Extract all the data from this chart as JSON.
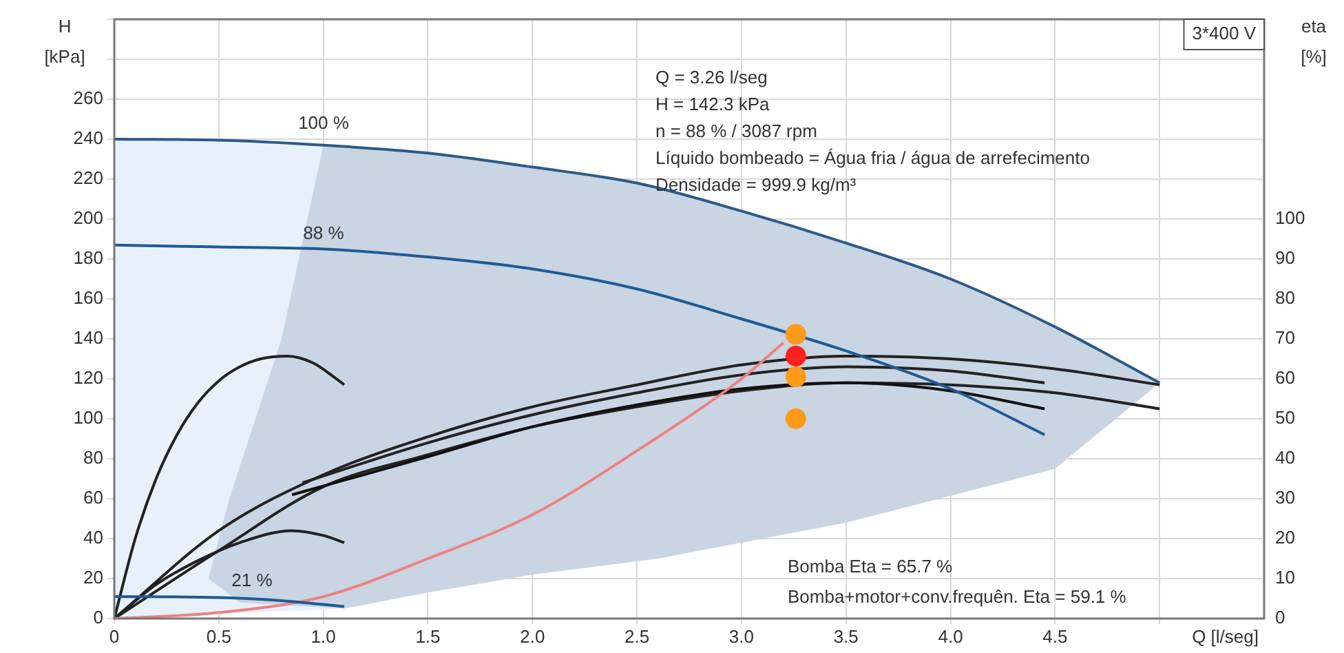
{
  "chart_data": {
    "type": "line",
    "xlabel": "Q [l/seg]",
    "ylabel": "H [kPa]",
    "y2label": "eta [%]",
    "xlim": [
      0,
      5.5
    ],
    "xticks": [
      0,
      0.5,
      {
        "value": 1,
        "label": "1.0"
      },
      1.5,
      {
        "value": 2,
        "label": "2.0"
      },
      2.5,
      {
        "value": 3,
        "label": "3.0"
      },
      3.5,
      {
        "value": 4,
        "label": "4.0"
      },
      4.5,
      {
        "value": 5,
        "label": null
      }
    ],
    "ylim": [
      0,
      300
    ],
    "yticks": [
      0,
      20,
      40,
      60,
      80,
      100,
      120,
      140,
      160,
      180,
      200,
      220,
      240,
      260,
      {
        "value": 280,
        "label": null
      },
      {
        "value": 300,
        "label": null
      }
    ],
    "y2lim": [
      0,
      150
    ],
    "y2ticks": [
      0,
      10,
      20,
      30,
      40,
      50,
      60,
      70,
      80,
      90,
      100
    ],
    "grid": true,
    "legend": false,
    "marker": "none",
    "series": [
      {
        "type": "area",
        "color": "#e8f1fa",
        "x": [
          0,
          0,
          1.0,
          1.1
        ],
        "values": [
          0,
          240,
          237,
          5
        ]
      },
      {
        "type": "area",
        "color": "#c9d5e3",
        "x": [
          1.0,
          1.5,
          2.0,
          2.5,
          3.0,
          3.5,
          4.0,
          4.5,
          5.0,
          4.5,
          3.5,
          2.6,
          2.0,
          1.5,
          1.1,
          0.6,
          0.45,
          0.55,
          0.8
        ],
        "values": [
          237,
          233,
          226,
          218,
          204,
          188,
          170,
          146,
          118,
          75,
          48,
          30,
          22,
          13,
          5,
          8,
          20,
          60,
          140
        ]
      },
      {
        "color": "#2b5a8a",
        "x": [
          0,
          0.5,
          1.0,
          1.5,
          2.0,
          2.5,
          3.0,
          3.5,
          4.0,
          4.5,
          5.0
        ],
        "values": [
          240,
          239.5,
          237,
          233,
          226,
          218,
          204,
          188,
          170,
          146,
          118
        ]
      },
      {
        "color": "#1f5a96",
        "x": [
          0,
          0.5,
          1.0,
          1.5,
          2.0,
          2.5,
          3.0,
          3.5,
          4.0,
          4.45
        ],
        "values": [
          187,
          186,
          185,
          181,
          175,
          165,
          150,
          134,
          115,
          92
        ]
      },
      {
        "color": "#1f5a96",
        "x": [
          0,
          0.5,
          0.8,
          1.1
        ],
        "values": [
          11,
          10.5,
          9,
          6
        ]
      },
      {
        "color": "#f08080",
        "x": [
          0,
          0.5,
          1.0,
          1.5,
          2.0,
          2.5,
          3.0,
          3.2
        ],
        "values": [
          0,
          3,
          11,
          30,
          52,
          84,
          120,
          138
        ]
      },
      {
        "axis": "y2",
        "color": "#222222",
        "x": [
          0,
          0.1,
          0.2,
          0.3,
          0.4,
          0.5,
          0.6,
          0.7,
          0.83,
          0.95,
          1.05,
          1.1
        ],
        "values": [
          0,
          20,
          35,
          46,
          54,
          59.5,
          63,
          65,
          65.7,
          64,
          60.5,
          58.5
        ]
      },
      {
        "axis": "y2",
        "color": "#222222",
        "x": [
          0,
          0.2,
          0.4,
          0.6,
          0.85,
          1.0,
          1.1
        ],
        "values": [
          0,
          8.5,
          14.5,
          19,
          22,
          20.8,
          19
        ]
      },
      {
        "axis": "y2",
        "color": "#222222",
        "x": [
          0,
          0.5,
          1.0,
          1.5,
          2.0,
          2.5,
          3.0,
          3.5,
          4.0,
          4.5,
          5.0
        ],
        "values": [
          0,
          22,
          36,
          45.5,
          53,
          58.5,
          63.5,
          65.7,
          65,
          62.5,
          58.5
        ]
      },
      {
        "axis": "y2",
        "color": "#222222",
        "x": [
          0.9,
          1.5,
          2.0,
          2.5,
          3.0,
          3.5,
          4.0,
          4.45
        ],
        "values": [
          34,
          44,
          51,
          56.5,
          61,
          63,
          62,
          59
        ]
      },
      {
        "axis": "y2",
        "color": "#111111",
        "x": [
          0.85,
          1.5,
          2.0,
          2.5,
          3.0,
          3.5,
          4.0,
          4.45
        ],
        "values": [
          31,
          40.5,
          48,
          53.5,
          57.5,
          59,
          57,
          52.5
        ]
      },
      {
        "axis": "y2",
        "color": "#222222",
        "x": [
          0,
          0.5,
          1.0,
          1.5,
          2.0,
          2.5,
          3.0,
          3.5,
          4.0,
          4.5,
          5.0
        ],
        "values": [
          0,
          17,
          33,
          41,
          48,
          53,
          57,
          59,
          58.5,
          56.5,
          52.5
        ]
      },
      {
        "type": "scatter",
        "marker": "circle",
        "color": "#ff9a1a",
        "x": [
          3.26
        ],
        "values": [
          142.3
        ]
      },
      {
        "type": "scatter",
        "axis": "y2",
        "marker": "circle",
        "color": "#ff2020",
        "x": [
          3.26
        ],
        "values": [
          65.7
        ]
      },
      {
        "type": "scatter",
        "axis": "y2",
        "marker": "circle",
        "color": "#ff9a1a",
        "x": [
          3.26,
          3.26
        ],
        "values": [
          60.5,
          50
        ]
      }
    ],
    "annotations": [
      "Q = 3.26 l/seg",
      "H = 142.3 kPa",
      "n = 88 % / 3087 rpm",
      "Líquido bombeado = Água fria / água de arrefecimento",
      "Densidade = 999.9 kg/m³",
      "Bomba Eta = 65.7 %",
      "Bomba+motor+conv.frequên. Eta = 59.1 %",
      "3*400 V",
      {
        "text": "100 %",
        "y": 240
      },
      {
        "text": "88 %",
        "y": 185
      },
      {
        "text": "21 %",
        "y": 11
      }
    ]
  }
}
